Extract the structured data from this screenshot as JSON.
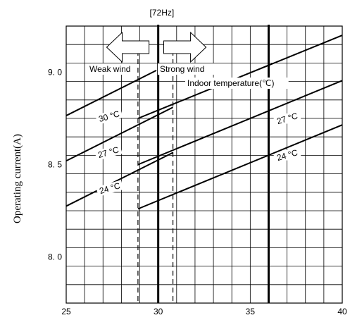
{
  "chart_data": {
    "type": "line",
    "title": "[72Hz]",
    "xlabel": "",
    "ylabel": "Operating current(A)",
    "xlim": [
      25,
      40
    ],
    "ylim": [
      7.75,
      9.25
    ],
    "x_ticks": [
      25,
      30,
      35,
      40
    ],
    "y_ticks": [
      {
        "value": 8.0,
        "label": "8. 0"
      },
      {
        "value": 8.5,
        "label": "8. 5"
      },
      {
        "value": 9.0,
        "label": "9. 0"
      }
    ],
    "grid": true,
    "series": [
      {
        "name": "30 °C",
        "x": [
          25,
          29.9
        ],
        "y": [
          8.765,
          9.01
        ]
      },
      {
        "name": "27 °C",
        "x": [
          25,
          30.8
        ],
        "y": [
          8.52,
          8.81
        ]
      },
      {
        "name": "24 °C",
        "x": [
          25,
          30.8
        ],
        "y": [
          8.275,
          8.565
        ]
      },
      {
        "name": "",
        "x": [
          28.9,
          40
        ],
        "y": [
          8.75,
          9.2
        ]
      },
      {
        "name": "27 °C",
        "x": [
          28.9,
          40
        ],
        "y": [
          8.5,
          8.955
        ]
      },
      {
        "name": "24 °C",
        "x": [
          28.9,
          40
        ],
        "y": [
          8.26,
          8.715
        ]
      }
    ],
    "vertical_lines": [
      {
        "x": 30,
        "style": "thick"
      },
      {
        "x": 36,
        "style": "thick"
      },
      {
        "x": 28.9,
        "style": "dashed"
      },
      {
        "x": 30.8,
        "style": "dashed"
      }
    ],
    "annotations": {
      "weak_wind": "Weak wind",
      "strong_wind": "Strong wind",
      "indoor_temp": "Indoor temperature(℃)"
    }
  }
}
